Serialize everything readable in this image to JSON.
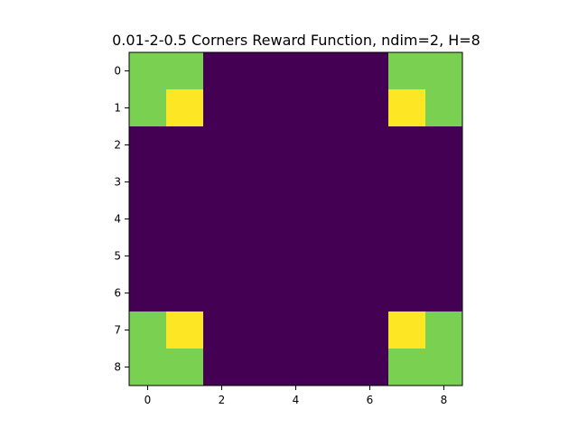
{
  "chart_data": {
    "type": "heatmap",
    "title": "0.01-2-0.5 Corners Reward Function, ndim=2, H=8",
    "xlabel": "",
    "ylabel": "",
    "rows": 9,
    "cols": 9,
    "xlim": [
      -0.5,
      8.5
    ],
    "ylim": [
      8.5,
      -0.5
    ],
    "xticks": [
      0,
      2,
      4,
      6,
      8
    ],
    "yticks": [
      0,
      1,
      2,
      3,
      4,
      5,
      6,
      7,
      8
    ],
    "colormap": "viridis",
    "value_range": [
      0.01,
      2.51
    ],
    "matrix": [
      [
        0.51,
        0.51,
        0.01,
        0.01,
        0.01,
        0.01,
        0.01,
        0.51,
        0.51
      ],
      [
        0.51,
        2.51,
        0.01,
        0.01,
        0.01,
        0.01,
        0.01,
        2.51,
        0.51
      ],
      [
        0.01,
        0.01,
        0.01,
        0.01,
        0.01,
        0.01,
        0.01,
        0.01,
        0.01
      ],
      [
        0.01,
        0.01,
        0.01,
        0.01,
        0.01,
        0.01,
        0.01,
        0.01,
        0.01
      ],
      [
        0.01,
        0.01,
        0.01,
        0.01,
        0.01,
        0.01,
        0.01,
        0.01,
        0.01
      ],
      [
        0.01,
        0.01,
        0.01,
        0.01,
        0.01,
        0.01,
        0.01,
        0.01,
        0.01
      ],
      [
        0.01,
        0.01,
        0.01,
        0.01,
        0.01,
        0.01,
        0.01,
        0.01,
        0.01
      ],
      [
        0.51,
        2.51,
        0.01,
        0.01,
        0.01,
        0.01,
        0.01,
        2.51,
        0.51
      ],
      [
        0.51,
        0.51,
        0.01,
        0.01,
        0.01,
        0.01,
        0.01,
        0.51,
        0.51
      ]
    ],
    "colors": {
      "low": "#440154",
      "mid": "#7ad151",
      "high": "#fde725",
      "axis": "#000000"
    }
  }
}
